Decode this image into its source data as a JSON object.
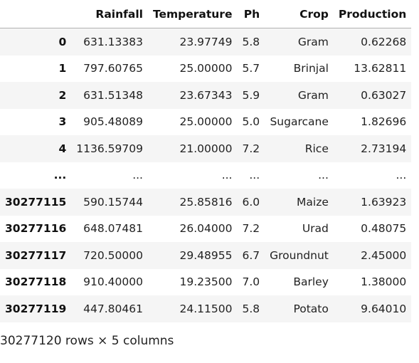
{
  "dataframe": {
    "columns": [
      "Rainfall",
      "Temperature",
      "Ph",
      "Crop",
      "Production"
    ],
    "rows": [
      {
        "index": "0",
        "Rainfall": "631.13383",
        "Temperature": "23.97749",
        "Ph": "5.8",
        "Crop": "Gram",
        "Production": "0.62268"
      },
      {
        "index": "1",
        "Rainfall": "797.60765",
        "Temperature": "25.00000",
        "Ph": "5.7",
        "Crop": "Brinjal",
        "Production": "13.62811"
      },
      {
        "index": "2",
        "Rainfall": "631.51348",
        "Temperature": "23.67343",
        "Ph": "5.9",
        "Crop": "Gram",
        "Production": "0.63027"
      },
      {
        "index": "3",
        "Rainfall": "905.48089",
        "Temperature": "25.00000",
        "Ph": "5.0",
        "Crop": "Sugarcane",
        "Production": "1.82696"
      },
      {
        "index": "4",
        "Rainfall": "1136.59709",
        "Temperature": "21.00000",
        "Ph": "7.2",
        "Crop": "Rice",
        "Production": "2.73194"
      },
      {
        "index": "...",
        "Rainfall": "...",
        "Temperature": "...",
        "Ph": "...",
        "Crop": "...",
        "Production": "..."
      },
      {
        "index": "30277115",
        "Rainfall": "590.15744",
        "Temperature": "25.85816",
        "Ph": "6.0",
        "Crop": "Maize",
        "Production": "1.63923"
      },
      {
        "index": "30277116",
        "Rainfall": "648.07481",
        "Temperature": "26.04000",
        "Ph": "7.2",
        "Crop": "Urad",
        "Production": "0.48075"
      },
      {
        "index": "30277117",
        "Rainfall": "720.50000",
        "Temperature": "29.48955",
        "Ph": "6.7",
        "Crop": "Groundnut",
        "Production": "2.45000"
      },
      {
        "index": "30277118",
        "Rainfall": "910.40000",
        "Temperature": "19.23500",
        "Ph": "7.0",
        "Crop": "Barley",
        "Production": "1.38000"
      },
      {
        "index": "30277119",
        "Rainfall": "447.80461",
        "Temperature": "24.11500",
        "Ph": "5.8",
        "Crop": "Potato",
        "Production": "9.64010"
      }
    ],
    "summary": "30277120 rows × 5 columns"
  },
  "colors": {
    "stripe": "#f5f5f5",
    "header_border": "#b0b0b0",
    "text": "#222222"
  }
}
